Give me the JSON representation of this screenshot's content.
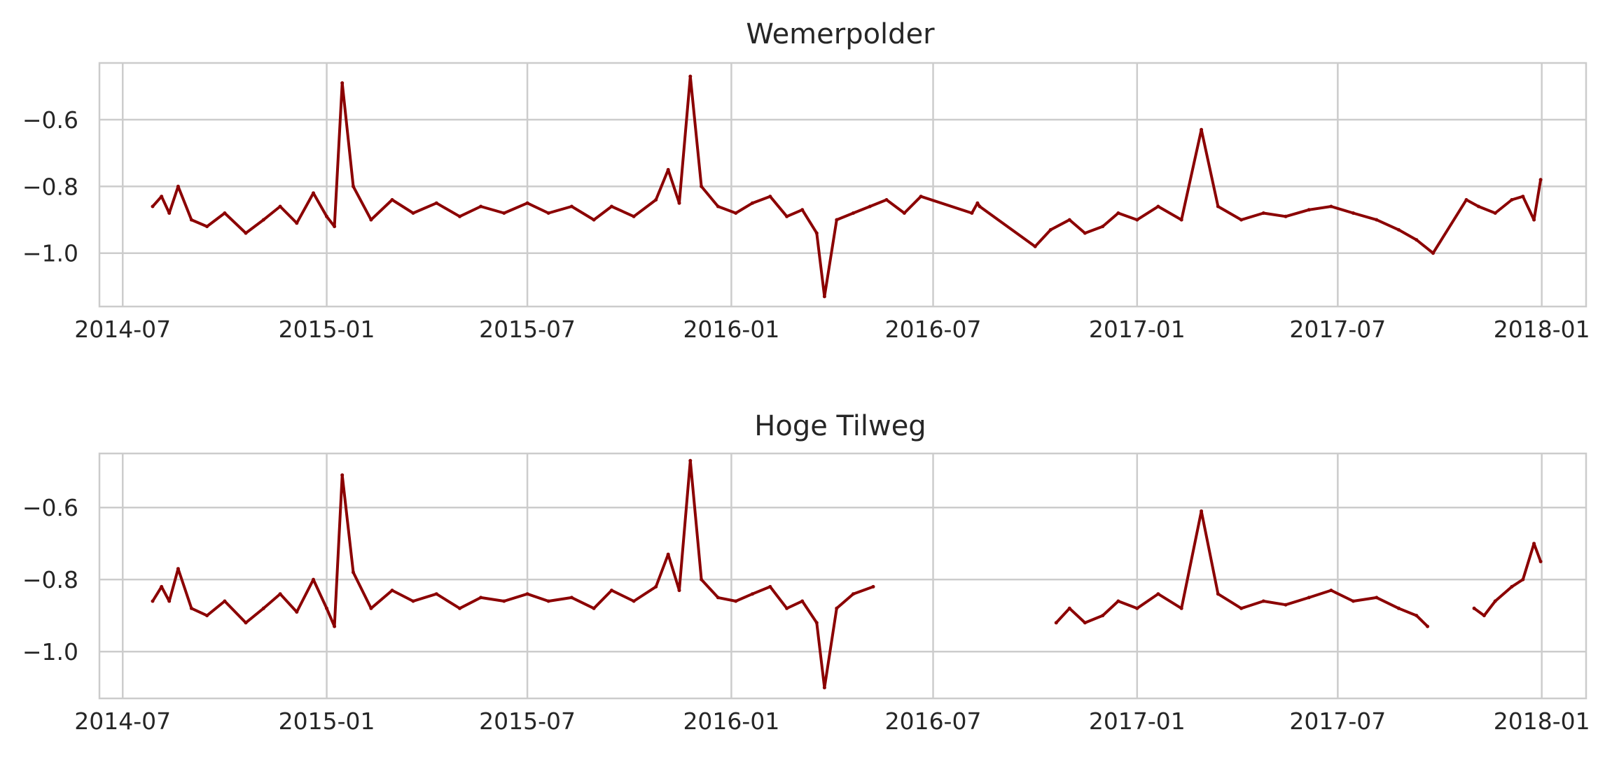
{
  "chart_data": [
    {
      "type": "line",
      "title": "Wemerpolder",
      "xlabel": "",
      "ylabel": "",
      "xlim": [
        "2014-06-10",
        "2018-02-10"
      ],
      "ylim": [
        -1.16,
        -0.43
      ],
      "x_ticks": [
        "2014-07",
        "2015-01",
        "2015-07",
        "2016-01",
        "2016-07",
        "2017-01",
        "2017-07",
        "2018-01"
      ],
      "y_ticks": [
        -0.6,
        -0.8,
        -1.0
      ],
      "y_tick_labels": [
        "−0.6",
        "−0.8",
        "−1.0"
      ],
      "grid": true,
      "legend": "none",
      "color": "#8b0000",
      "series": [
        {
          "x": [
            "2014-07-28",
            "2014-08-05",
            "2014-08-12",
            "2014-08-20",
            "2014-09-01",
            "2014-09-15",
            "2014-10-01",
            "2014-10-20",
            "2014-11-05",
            "2014-11-20",
            "2014-12-05",
            "2014-12-20",
            "2015-01-01",
            "2015-01-08",
            "2015-01-15",
            "2015-01-25",
            "2015-02-10",
            "2015-03-01",
            "2015-03-20",
            "2015-04-10",
            "2015-05-01",
            "2015-05-20",
            "2015-06-10",
            "2015-07-01",
            "2015-07-20",
            "2015-08-10",
            "2015-08-30",
            "2015-09-15",
            "2015-10-05",
            "2015-10-25",
            "2015-11-05",
            "2015-11-15",
            "2015-11-25",
            "2015-12-05",
            "2015-12-20",
            "2016-01-05",
            "2016-01-20",
            "2016-02-05",
            "2016-02-20",
            "2016-03-05",
            "2016-03-18",
            "2016-03-25",
            "2016-04-05",
            "2016-04-20",
            "2016-05-05",
            "2016-05-20",
            "2016-06-05",
            "2016-06-20",
            "2016-08-05",
            "2016-08-10",
            "2016-08-12",
            "2016-10-01",
            "2016-10-15",
            "2016-11-01",
            "2016-11-15",
            "2016-12-01",
            "2016-12-15",
            "2017-01-01",
            "2017-01-20",
            "2017-02-10",
            "2017-02-28",
            "2017-03-15",
            "2017-04-05",
            "2017-04-25",
            "2017-05-15",
            "2017-06-05",
            "2017-06-25",
            "2017-07-15",
            "2017-08-05",
            "2017-08-25",
            "2017-09-10",
            "2017-09-25",
            "2017-10-25",
            "2017-11-05",
            "2017-11-20",
            "2017-12-05",
            "2017-12-15",
            "2017-12-25",
            "2017-12-31"
          ],
          "y": [
            -0.86,
            -0.83,
            -0.88,
            -0.8,
            -0.9,
            -0.92,
            -0.88,
            -0.94,
            -0.9,
            -0.86,
            -0.91,
            -0.82,
            -0.89,
            -0.92,
            -0.49,
            -0.8,
            -0.9,
            -0.84,
            -0.88,
            -0.85,
            -0.89,
            -0.86,
            -0.88,
            -0.85,
            -0.88,
            -0.86,
            -0.9,
            -0.86,
            -0.89,
            -0.84,
            -0.75,
            -0.85,
            -0.47,
            -0.8,
            -0.86,
            -0.88,
            -0.85,
            -0.83,
            -0.89,
            -0.87,
            -0.94,
            -1.13,
            -0.9,
            -0.88,
            -0.86,
            -0.84,
            -0.88,
            -0.83,
            -0.88,
            -0.85,
            -0.86,
            -0.98,
            -0.93,
            -0.9,
            -0.94,
            -0.92,
            -0.88,
            -0.9,
            -0.86,
            -0.9,
            -0.63,
            -0.86,
            -0.9,
            -0.88,
            -0.89,
            -0.87,
            -0.86,
            -0.88,
            -0.9,
            -0.93,
            -0.96,
            -1.0,
            -0.84,
            -0.86,
            -0.88,
            -0.84,
            -0.83,
            -0.9,
            -0.78
          ]
        }
      ]
    },
    {
      "type": "line",
      "title": "Hoge Tilweg",
      "xlabel": "",
      "ylabel": "",
      "xlim": [
        "2014-06-10",
        "2018-02-10"
      ],
      "ylim": [
        -1.13,
        -0.45
      ],
      "x_ticks": [
        "2014-07",
        "2015-01",
        "2015-07",
        "2016-01",
        "2016-07",
        "2017-01",
        "2017-07",
        "2018-01"
      ],
      "y_ticks": [
        -0.6,
        -0.8,
        -1.0
      ],
      "y_tick_labels": [
        "−0.6",
        "−0.8",
        "−1.0"
      ],
      "grid": true,
      "legend": "none",
      "color": "#8b0000",
      "series": [
        {
          "x": [
            "2014-07-28",
            "2014-08-05",
            "2014-08-12",
            "2014-08-20",
            "2014-09-01",
            "2014-09-15",
            "2014-10-01",
            "2014-10-20",
            "2014-11-05",
            "2014-11-20",
            "2014-12-05",
            "2014-12-20",
            "2015-01-01",
            "2015-01-08",
            "2015-01-15",
            "2015-01-25",
            "2015-02-10",
            "2015-03-01",
            "2015-03-20",
            "2015-04-10",
            "2015-05-01",
            "2015-05-20",
            "2015-06-10",
            "2015-07-01",
            "2015-07-20",
            "2015-08-10",
            "2015-08-30",
            "2015-09-15",
            "2015-10-05",
            "2015-10-25",
            "2015-11-05",
            "2015-11-15",
            "2015-11-25",
            "2015-12-05",
            "2015-12-20",
            "2016-01-05",
            "2016-01-20",
            "2016-02-05",
            "2016-02-20",
            "2016-03-05",
            "2016-03-18",
            "2016-03-25",
            "2016-04-05",
            "2016-04-20",
            "2016-05-08",
            null,
            "2016-10-20",
            "2016-11-01",
            "2016-11-15",
            "2016-12-01",
            "2016-12-15",
            "2017-01-01",
            "2017-01-20",
            "2017-02-10",
            "2017-02-28",
            "2017-03-15",
            "2017-04-05",
            "2017-04-25",
            "2017-05-15",
            "2017-06-05",
            "2017-06-25",
            "2017-07-15",
            "2017-08-05",
            "2017-08-25",
            "2017-09-10",
            "2017-09-20",
            null,
            "2017-11-01",
            "2017-11-10",
            "2017-11-20",
            "2017-12-05",
            "2017-12-15",
            "2017-12-25",
            "2017-12-31"
          ],
          "y": [
            -0.86,
            -0.82,
            -0.86,
            -0.77,
            -0.88,
            -0.9,
            -0.86,
            -0.92,
            -0.88,
            -0.84,
            -0.89,
            -0.8,
            -0.88,
            -0.93,
            -0.51,
            -0.78,
            -0.88,
            -0.83,
            -0.86,
            -0.84,
            -0.88,
            -0.85,
            -0.86,
            -0.84,
            -0.86,
            -0.85,
            -0.88,
            -0.83,
            -0.86,
            -0.82,
            -0.73,
            -0.83,
            -0.47,
            -0.8,
            -0.85,
            -0.86,
            -0.84,
            -0.82,
            -0.88,
            -0.86,
            -0.92,
            -1.1,
            -0.88,
            -0.84,
            -0.82,
            null,
            -0.92,
            -0.88,
            -0.92,
            -0.9,
            -0.86,
            -0.88,
            -0.84,
            -0.88,
            -0.61,
            -0.84,
            -0.88,
            -0.86,
            -0.87,
            -0.85,
            -0.83,
            -0.86,
            -0.85,
            -0.88,
            -0.9,
            -0.93,
            null,
            -0.88,
            -0.9,
            -0.86,
            -0.82,
            -0.8,
            -0.7,
            -0.75
          ]
        }
      ]
    }
  ]
}
